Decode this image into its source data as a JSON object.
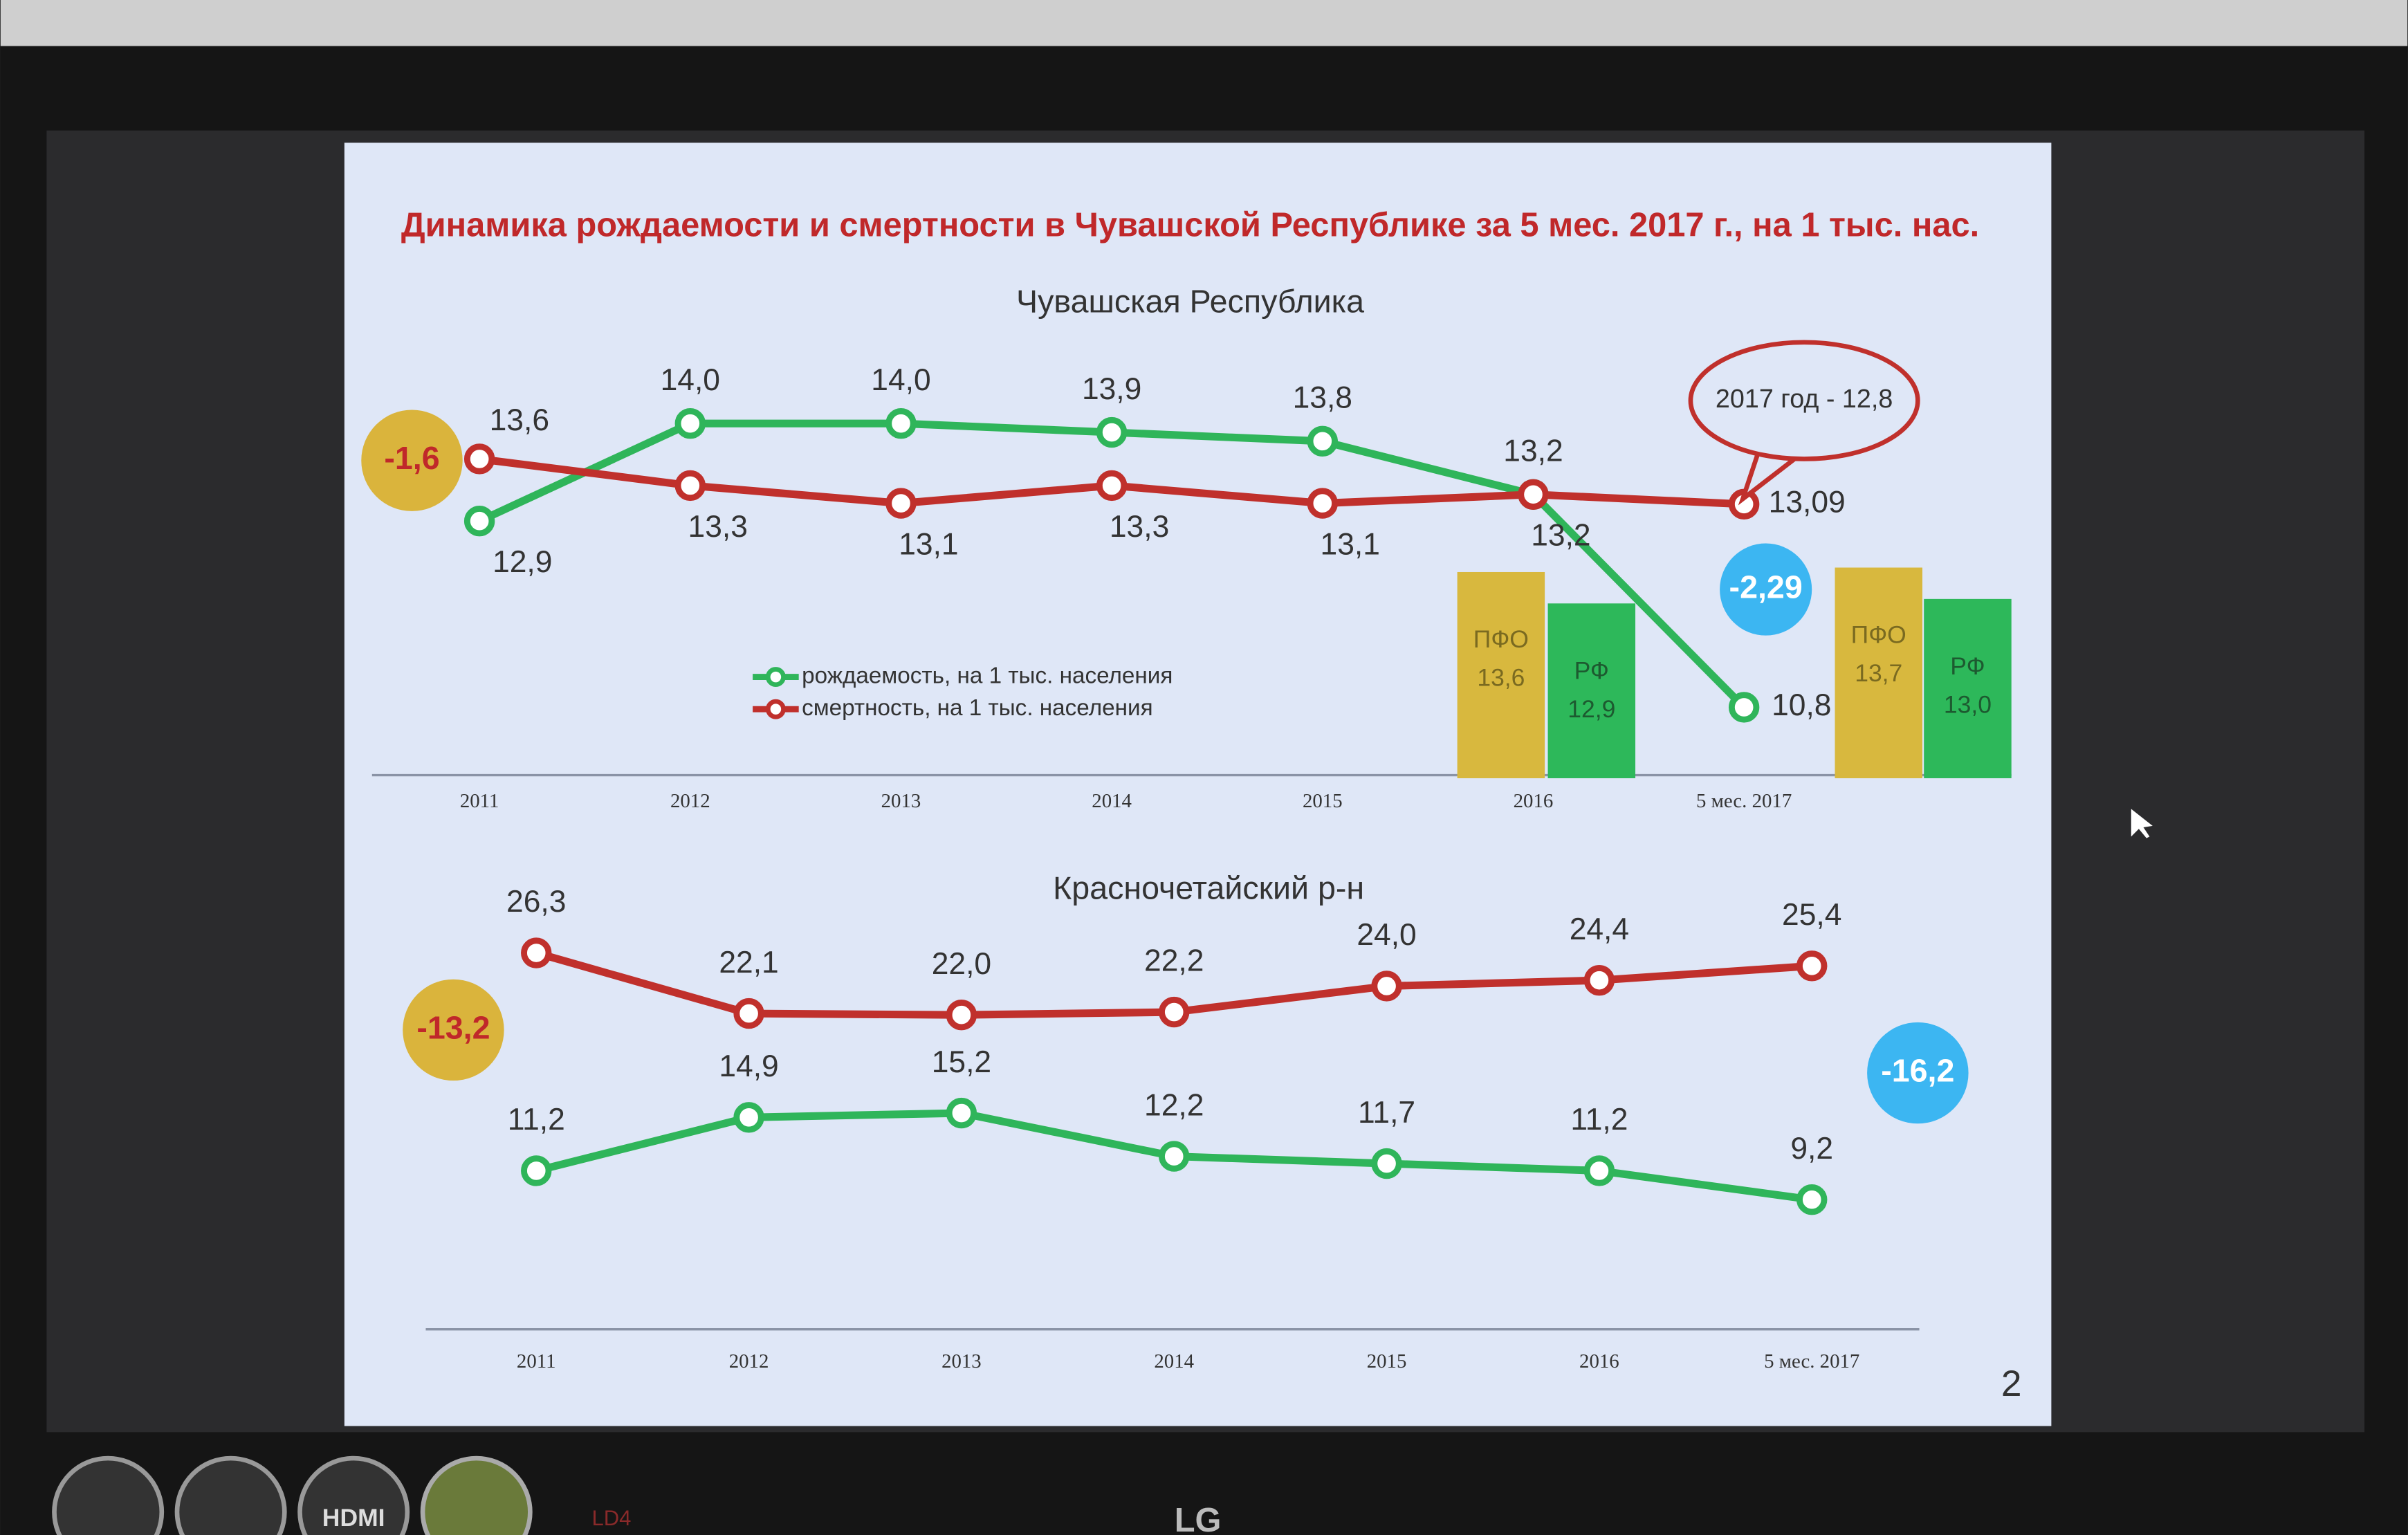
{
  "title": "Динамика рождаемости и смертности в Чувашской Республике за 5 мес. 2017 г., на 1 тыс. нас.",
  "page_number": "2",
  "bezel_labels": [
    "HDMI",
    "LD4",
    "LG"
  ],
  "chart_data": [
    {
      "type": "line",
      "title": "Чувашская Республика",
      "categories": [
        "2011",
        "2012",
        "2013",
        "2014",
        "2015",
        "2016",
        "5 мес. 2017"
      ],
      "ylim": [
        10,
        14.5
      ],
      "legend": true,
      "series": [
        {
          "name": "рождаемость, на 1 тыс. населения",
          "color": "#2fb55a",
          "values": [
            12.9,
            14.0,
            14.0,
            13.9,
            13.8,
            13.2,
            10.8
          ],
          "value_labels": [
            "12,9",
            "14,0",
            "14,0",
            "13,9",
            "13,8",
            "13,2",
            "10,8"
          ]
        },
        {
          "name": "смертность, на 1 тыс. населения",
          "color": "#c0302c",
          "values": [
            13.6,
            13.3,
            13.1,
            13.3,
            13.1,
            13.2,
            13.09
          ],
          "value_labels": [
            "13,6",
            "13,3",
            "13,1",
            "13,3",
            "13,1",
            "13,2",
            "13,09"
          ]
        }
      ],
      "annotations": [
        {
          "text": "-1,6",
          "color": "#dab43c"
        },
        {
          "text": "-2,29",
          "color": "#3cb6f2"
        },
        {
          "text": "2017 год - 12,8",
          "color": "#c0302c"
        }
      ],
      "bars": {
        "type": "bar",
        "ylim": [
          9,
          14
        ],
        "series": [
          {
            "name": "ПФО",
            "color": "#d8b83e",
            "values": [
              13.6,
              13.7
            ],
            "value_labels": [
              "13,6",
              "13,7"
            ]
          },
          {
            "name": "РФ",
            "color": "#2db85a",
            "values": [
              12.9,
              13.0
            ],
            "value_labels": [
              "12,9",
              "13,0"
            ]
          }
        ]
      }
    },
    {
      "type": "line",
      "title": "Красночетайский р-н",
      "categories": [
        "2011",
        "2012",
        "2013",
        "2014",
        "2015",
        "2016",
        "5 мес. 2017"
      ],
      "ylim": [
        0,
        30
      ],
      "legend": false,
      "series": [
        {
          "color": "#c0302c",
          "values": [
            26.3,
            22.1,
            22.0,
            22.2,
            24.0,
            24.4,
            25.4
          ],
          "value_labels": [
            "26,3",
            "22,1",
            "22,0",
            "22,2",
            "24,0",
            "24,4",
            "25,4"
          ]
        },
        {
          "color": "#2fb55a",
          "values": [
            11.2,
            14.9,
            15.2,
            12.2,
            11.7,
            11.2,
            9.2
          ],
          "value_labels": [
            "11,2",
            "14,9",
            "15,2",
            "12,2",
            "11,7",
            "11,2",
            "9,2"
          ]
        }
      ],
      "annotations": [
        {
          "text": "-13,2",
          "color": "#dab43c"
        },
        {
          "text": "-16,2",
          "color": "#3cb6f2"
        }
      ]
    }
  ]
}
